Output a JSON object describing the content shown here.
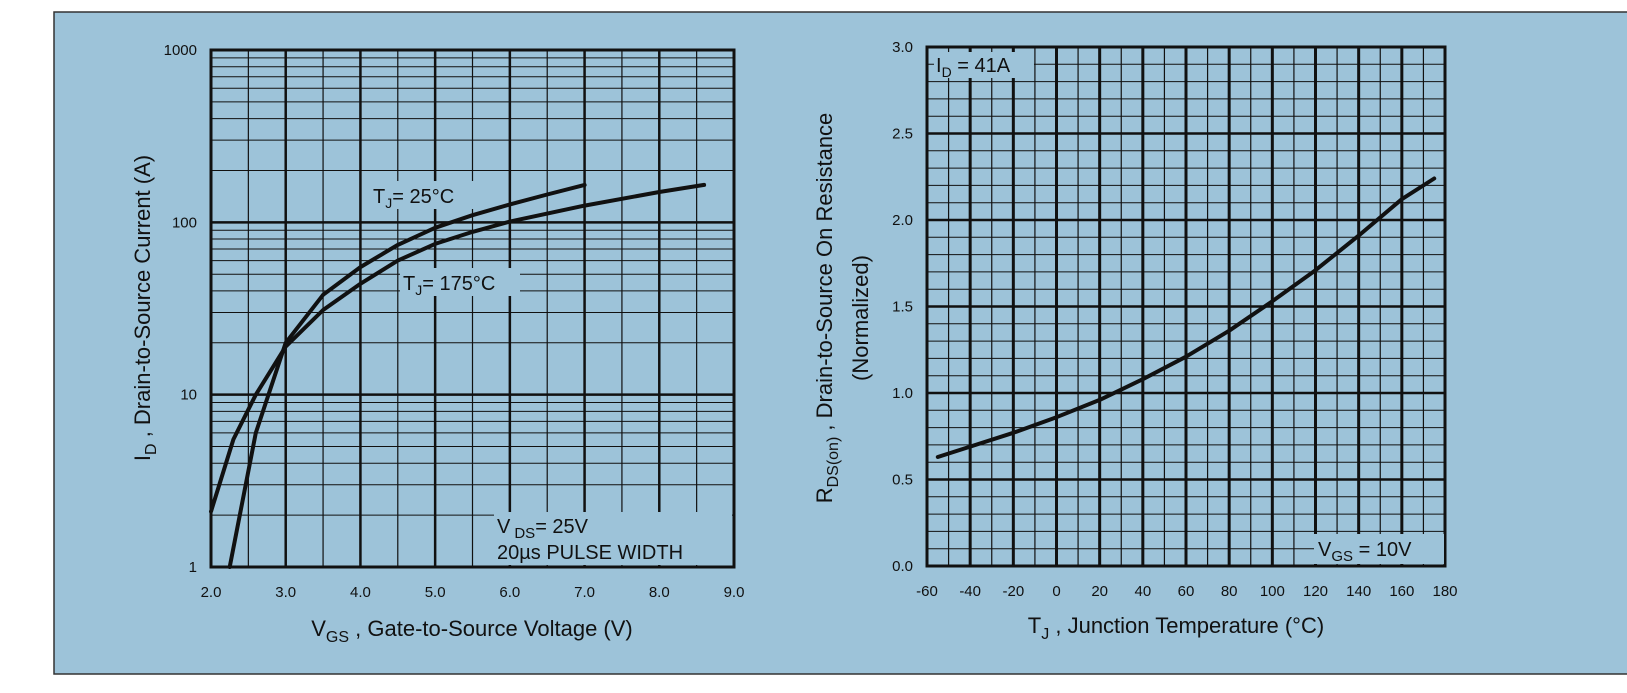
{
  "colors": {
    "background": "#9dc3d9",
    "border": "#333333",
    "ink": "#111111"
  },
  "chart_data": [
    {
      "type": "line",
      "scale_y": "log",
      "xlim": [
        2.0,
        9.0
      ],
      "ylim": [
        1,
        1000
      ],
      "grid": true,
      "x_ticks": [
        "2.0",
        "3.0",
        "4.0",
        "5.0",
        "6.0",
        "7.0",
        "8.0",
        "9.0"
      ],
      "y_ticks": [
        "1",
        "10",
        "100",
        "1000"
      ],
      "xlabel": {
        "main": "V",
        "sub": "GS",
        "rest": " , Gate-to-Source Voltage (V)"
      },
      "ylabel": {
        "main": "I",
        "sub": "D",
        "rest": " , Drain-to-Source Current (A)"
      },
      "series": [
        {
          "name": {
            "main": "T",
            "sub": "J",
            "rest": "= 25°C"
          },
          "x": [
            2.25,
            2.6,
            3.0,
            3.5,
            4.0,
            4.5,
            5.0,
            5.5,
            6.0,
            6.5,
            7.0
          ],
          "y": [
            1.0,
            6.0,
            20,
            38,
            55,
            74,
            93,
            110,
            127,
            145,
            165
          ]
        },
        {
          "name": {
            "main": "T",
            "sub": "J",
            "rest": "= 175°C"
          },
          "x": [
            2.0,
            2.3,
            2.6,
            3.0,
            3.5,
            4.0,
            4.5,
            5.0,
            5.5,
            6.0,
            7.0,
            8.0,
            8.6
          ],
          "y": [
            2.1,
            5.5,
            10,
            19,
            31,
            44,
            60,
            75,
            88,
            101,
            125,
            150,
            165
          ]
        }
      ],
      "annotation": {
        "line1": {
          "main": "V",
          "sub": "DS",
          "rest": "= 25V"
        },
        "line2": "20µs PULSE WIDTH"
      }
    },
    {
      "type": "line",
      "xlim": [
        -60,
        180
      ],
      "ylim": [
        0.0,
        3.0
      ],
      "grid": true,
      "x_ticks": [
        "-60",
        "-40",
        "-20",
        "0",
        "20",
        "40",
        "60",
        "80",
        "100",
        "120",
        "140",
        "160",
        "180"
      ],
      "y_ticks": [
        "0.0",
        "0.5",
        "1.0",
        "1.5",
        "2.0",
        "2.5",
        "3.0"
      ],
      "xlabel": {
        "main": "T",
        "sub": "J",
        "rest": " , Junction Temperature (°C)"
      },
      "ylabel": {
        "main": "R",
        "sub": "DS(on)",
        "rest": " ,  Drain-to-Source On Resistance",
        "line2": "(Normalized)"
      },
      "series": [
        {
          "x": [
            -55,
            -40,
            -20,
            0,
            20,
            40,
            60,
            80,
            100,
            120,
            140,
            160,
            175
          ],
          "y": [
            0.63,
            0.69,
            0.77,
            0.86,
            0.96,
            1.08,
            1.21,
            1.36,
            1.53,
            1.71,
            1.91,
            2.12,
            2.24
          ]
        }
      ],
      "annotation_id": {
        "main": "I",
        "sub": "D",
        "rest": " = 41A"
      },
      "annotation_vgs": {
        "main": "V",
        "sub": "GS",
        "rest": " = 10V"
      }
    }
  ]
}
